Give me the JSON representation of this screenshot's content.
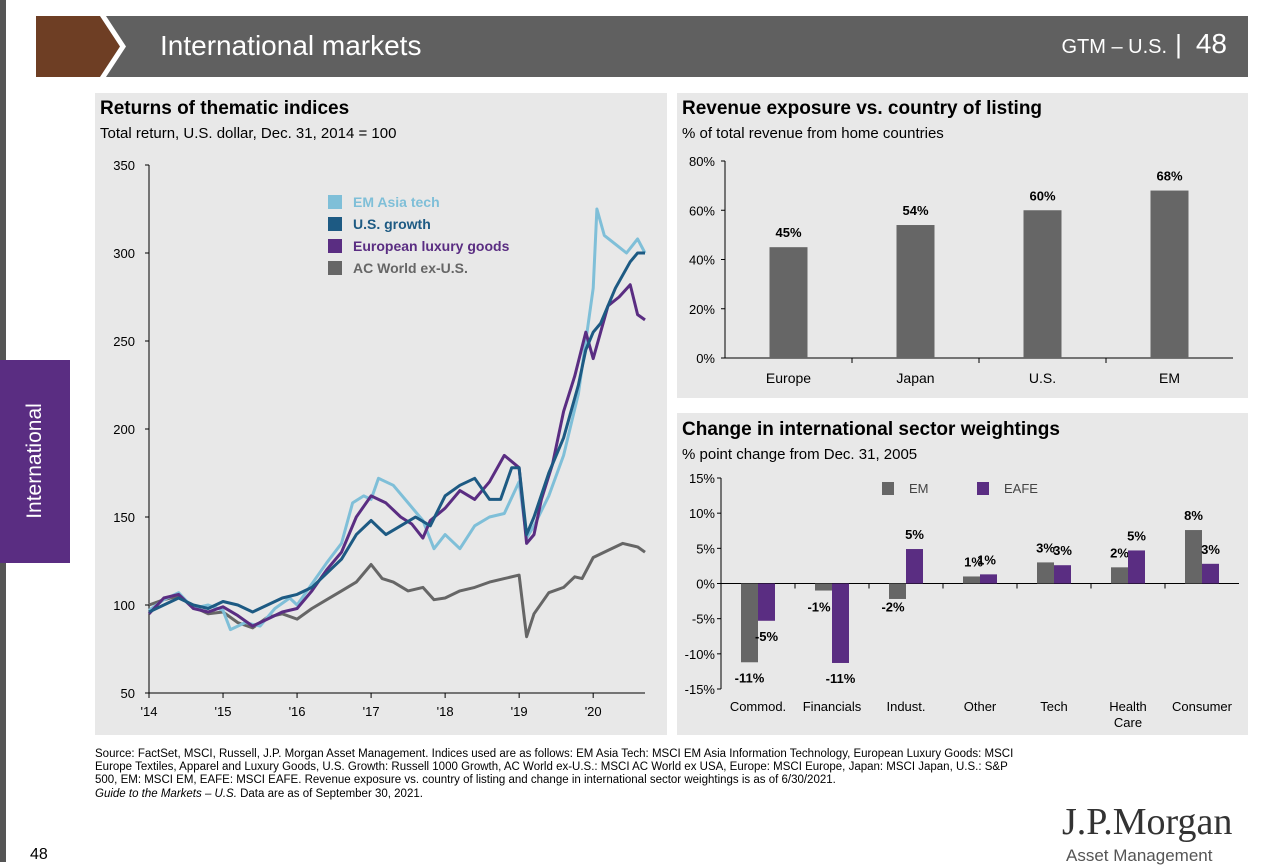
{
  "header": {
    "title": "International markets",
    "gtm": "GTM – U.S.",
    "page": "48"
  },
  "side_tab": "International",
  "charts": {
    "returns": {
      "title": "Returns of thematic indices",
      "subtitle": "Total return, U.S. dollar, Dec. 31, 2014 = 100"
    },
    "revenue": {
      "title": "Revenue exposure vs. country of listing",
      "subtitle": "% of total revenue from home countries"
    },
    "sector": {
      "title": "Change in international sector weightings",
      "subtitle": "% point change from Dec. 31, 2005"
    }
  },
  "chart_data": [
    {
      "type": "line",
      "title": "Returns of thematic indices",
      "subtitle": "Total return, U.S. dollar, Dec. 31, 2014 = 100",
      "ylim": [
        50,
        350
      ],
      "yticks": [
        "50",
        "100",
        "150",
        "200",
        "250",
        "300",
        "350"
      ],
      "xlim": [
        2014,
        2020.7
      ],
      "xtick_labels": [
        "'14",
        "'15",
        "'16",
        "'17",
        "'18",
        "'19",
        "'20"
      ],
      "legend_position": "top-center",
      "series": [
        {
          "name": "EM Asia tech",
          "color": "#7fbfd8",
          "points": [
            [
              2014,
              97
            ],
            [
              2014.2,
              103
            ],
            [
              2014.4,
              107
            ],
            [
              2014.6,
              98
            ],
            [
              2014.8,
              100
            ],
            [
              2015,
              97
            ],
            [
              2015.1,
              86
            ],
            [
              2015.3,
              90
            ],
            [
              2015.5,
              88
            ],
            [
              2015.7,
              98
            ],
            [
              2015.9,
              104
            ],
            [
              2016,
              100
            ],
            [
              2016.2,
              112
            ],
            [
              2016.4,
              124
            ],
            [
              2016.6,
              135
            ],
            [
              2016.75,
              158
            ],
            [
              2016.9,
              162
            ],
            [
              2017,
              160
            ],
            [
              2017.1,
              172
            ],
            [
              2017.3,
              168
            ],
            [
              2017.5,
              158
            ],
            [
              2017.7,
              148
            ],
            [
              2017.85,
              132
            ],
            [
              2018,
              140
            ],
            [
              2018.2,
              132
            ],
            [
              2018.4,
              145
            ],
            [
              2018.6,
              150
            ],
            [
              2018.8,
              152
            ],
            [
              2019,
              170
            ],
            [
              2019.1,
              138
            ],
            [
              2019.2,
              145
            ],
            [
              2019.4,
              162
            ],
            [
              2019.6,
              185
            ],
            [
              2019.8,
              220
            ],
            [
              2019.9,
              250
            ],
            [
              2020,
              280
            ],
            [
              2020.05,
              325
            ],
            [
              2020.15,
              310
            ],
            [
              2020.3,
              305
            ],
            [
              2020.45,
              300
            ],
            [
              2020.6,
              308
            ],
            [
              2020.7,
              300
            ]
          ]
        },
        {
          "name": "U.S. growth",
          "color": "#1d5a83",
          "points": [
            [
              2014,
              96
            ],
            [
              2014.2,
              100
            ],
            [
              2014.4,
              104
            ],
            [
              2014.6,
              100
            ],
            [
              2014.8,
              98
            ],
            [
              2015,
              102
            ],
            [
              2015.2,
              100
            ],
            [
              2015.4,
              96
            ],
            [
              2015.6,
              100
            ],
            [
              2015.8,
              104
            ],
            [
              2016,
              106
            ],
            [
              2016.2,
              110
            ],
            [
              2016.4,
              118
            ],
            [
              2016.6,
              126
            ],
            [
              2016.8,
              140
            ],
            [
              2017,
              148
            ],
            [
              2017.2,
              140
            ],
            [
              2017.4,
              145
            ],
            [
              2017.6,
              150
            ],
            [
              2017.8,
              145
            ],
            [
              2018,
              162
            ],
            [
              2018.2,
              168
            ],
            [
              2018.4,
              172
            ],
            [
              2018.6,
              160
            ],
            [
              2018.75,
              160
            ],
            [
              2018.9,
              178
            ],
            [
              2019,
              178
            ],
            [
              2019.1,
              140
            ],
            [
              2019.2,
              150
            ],
            [
              2019.4,
              175
            ],
            [
              2019.6,
              195
            ],
            [
              2019.8,
              225
            ],
            [
              2019.9,
              245
            ],
            [
              2020,
              255
            ],
            [
              2020.1,
              260
            ],
            [
              2020.3,
              280
            ],
            [
              2020.5,
              295
            ],
            [
              2020.6,
              300
            ],
            [
              2020.7,
              300
            ]
          ]
        },
        {
          "name": "European luxury goods",
          "color": "#5a2d82",
          "points": [
            [
              2014,
              95
            ],
            [
              2014.2,
              104
            ],
            [
              2014.4,
              106
            ],
            [
              2014.6,
              98
            ],
            [
              2014.8,
              96
            ],
            [
              2015,
              99
            ],
            [
              2015.2,
              94
            ],
            [
              2015.4,
              88
            ],
            [
              2015.6,
              92
            ],
            [
              2015.8,
              96
            ],
            [
              2016,
              98
            ],
            [
              2016.2,
              108
            ],
            [
              2016.4,
              120
            ],
            [
              2016.6,
              130
            ],
            [
              2016.8,
              150
            ],
            [
              2017,
              162
            ],
            [
              2017.2,
              158
            ],
            [
              2017.4,
              150
            ],
            [
              2017.55,
              146
            ],
            [
              2017.7,
              138
            ],
            [
              2017.8,
              148
            ],
            [
              2018,
              155
            ],
            [
              2018.2,
              165
            ],
            [
              2018.4,
              160
            ],
            [
              2018.6,
              170
            ],
            [
              2018.8,
              185
            ],
            [
              2019,
              178
            ],
            [
              2019.1,
              135
            ],
            [
              2019.2,
              140
            ],
            [
              2019.3,
              160
            ],
            [
              2019.45,
              180
            ],
            [
              2019.6,
              210
            ],
            [
              2019.75,
              230
            ],
            [
              2019.9,
              255
            ],
            [
              2020,
              240
            ],
            [
              2020.1,
              255
            ],
            [
              2020.2,
              270
            ],
            [
              2020.35,
              275
            ],
            [
              2020.5,
              282
            ],
            [
              2020.6,
              265
            ],
            [
              2020.7,
              262
            ]
          ]
        },
        {
          "name": "AC World ex-U.S.",
          "color": "#666666",
          "points": [
            [
              2014,
              100
            ],
            [
              2014.2,
              103
            ],
            [
              2014.4,
              105
            ],
            [
              2014.6,
              99
            ],
            [
              2014.8,
              95
            ],
            [
              2015,
              96
            ],
            [
              2015.2,
              90
            ],
            [
              2015.4,
              87
            ],
            [
              2015.6,
              93
            ],
            [
              2015.8,
              95
            ],
            [
              2016,
              92
            ],
            [
              2016.2,
              98
            ],
            [
              2016.4,
              103
            ],
            [
              2016.6,
              108
            ],
            [
              2016.8,
              113
            ],
            [
              2017,
              123
            ],
            [
              2017.15,
              115
            ],
            [
              2017.3,
              113
            ],
            [
              2017.5,
              108
            ],
            [
              2017.7,
              110
            ],
            [
              2017.85,
              103
            ],
            [
              2018,
              104
            ],
            [
              2018.2,
              108
            ],
            [
              2018.4,
              110
            ],
            [
              2018.6,
              113
            ],
            [
              2018.8,
              115
            ],
            [
              2019,
              117
            ],
            [
              2019.1,
              82
            ],
            [
              2019.2,
              95
            ],
            [
              2019.4,
              107
            ],
            [
              2019.6,
              110
            ],
            [
              2019.75,
              116
            ],
            [
              2019.85,
              115
            ],
            [
              2020,
              127
            ],
            [
              2020.2,
              131
            ],
            [
              2020.4,
              135
            ],
            [
              2020.6,
              133
            ],
            [
              2020.7,
              130
            ]
          ]
        }
      ]
    },
    {
      "type": "bar",
      "title": "Revenue exposure vs. country of listing",
      "subtitle": "% of total revenue from home countries",
      "categories": [
        "Europe",
        "Japan",
        "U.S.",
        "EM"
      ],
      "values": [
        45,
        54,
        60,
        68
      ],
      "value_labels": [
        "45%",
        "54%",
        "60%",
        "68%"
      ],
      "ylim": [
        0,
        80
      ],
      "yticks": [
        "0%",
        "20%",
        "40%",
        "60%",
        "80%"
      ],
      "color": "#666666"
    },
    {
      "type": "bar",
      "title": "Change in international sector weightings",
      "subtitle": "% point change from Dec. 31, 2005",
      "categories": [
        "Commod.",
        "Financials",
        "Indust.",
        "Other",
        "Tech",
        "Health Care",
        "Consumer"
      ],
      "ylim": [
        -15,
        15
      ],
      "yticks": [
        "-15%",
        "-10%",
        "-5%",
        "0%",
        "5%",
        "10%",
        "15%"
      ],
      "legend_position": "top-center",
      "series": [
        {
          "name": "EM",
          "color": "#666666",
          "values": [
            -11.2,
            -1.0,
            -2.2,
            1.0,
            3.0,
            2.3,
            7.6
          ],
          "labels": [
            "-11%",
            "-1%",
            "-2%",
            "1%",
            "3%",
            "2%",
            "8%"
          ]
        },
        {
          "name": "EAFE",
          "color": "#5a2d82",
          "values": [
            -5.3,
            -11.3,
            4.9,
            1.3,
            2.6,
            4.7,
            2.8
          ],
          "labels": [
            "-5%",
            "-11%",
            "5%",
            "1%",
            "3%",
            "5%",
            "3%"
          ]
        }
      ]
    }
  ],
  "source": {
    "text": "Source: FactSet, MSCI, Russell, J.P. Morgan Asset Management. Indices used are as follows: EM Asia Tech: MSCI EM Asia Information Technology, European Luxury Goods: MSCI Europe Textiles, Apparel and Luxury Goods, U.S. Growth: Russell 1000 Growth, AC World ex-U.S.: MSCI AC World ex USA, Europe: MSCI Europe, Japan: MSCI Japan, U.S.: S&P 500, EM: MSCI EM, EAFE: MSCI EAFE. Revenue exposure vs. country of listing and change in international sector weightings is as of 6/30/2021.",
    "italic": "Guide to the Markets – U.S.",
    "tail": " Data are as of September 30, 2021."
  },
  "logo": {
    "name": "J.P.Morgan",
    "sub": "Asset Management"
  },
  "page_number": "48"
}
